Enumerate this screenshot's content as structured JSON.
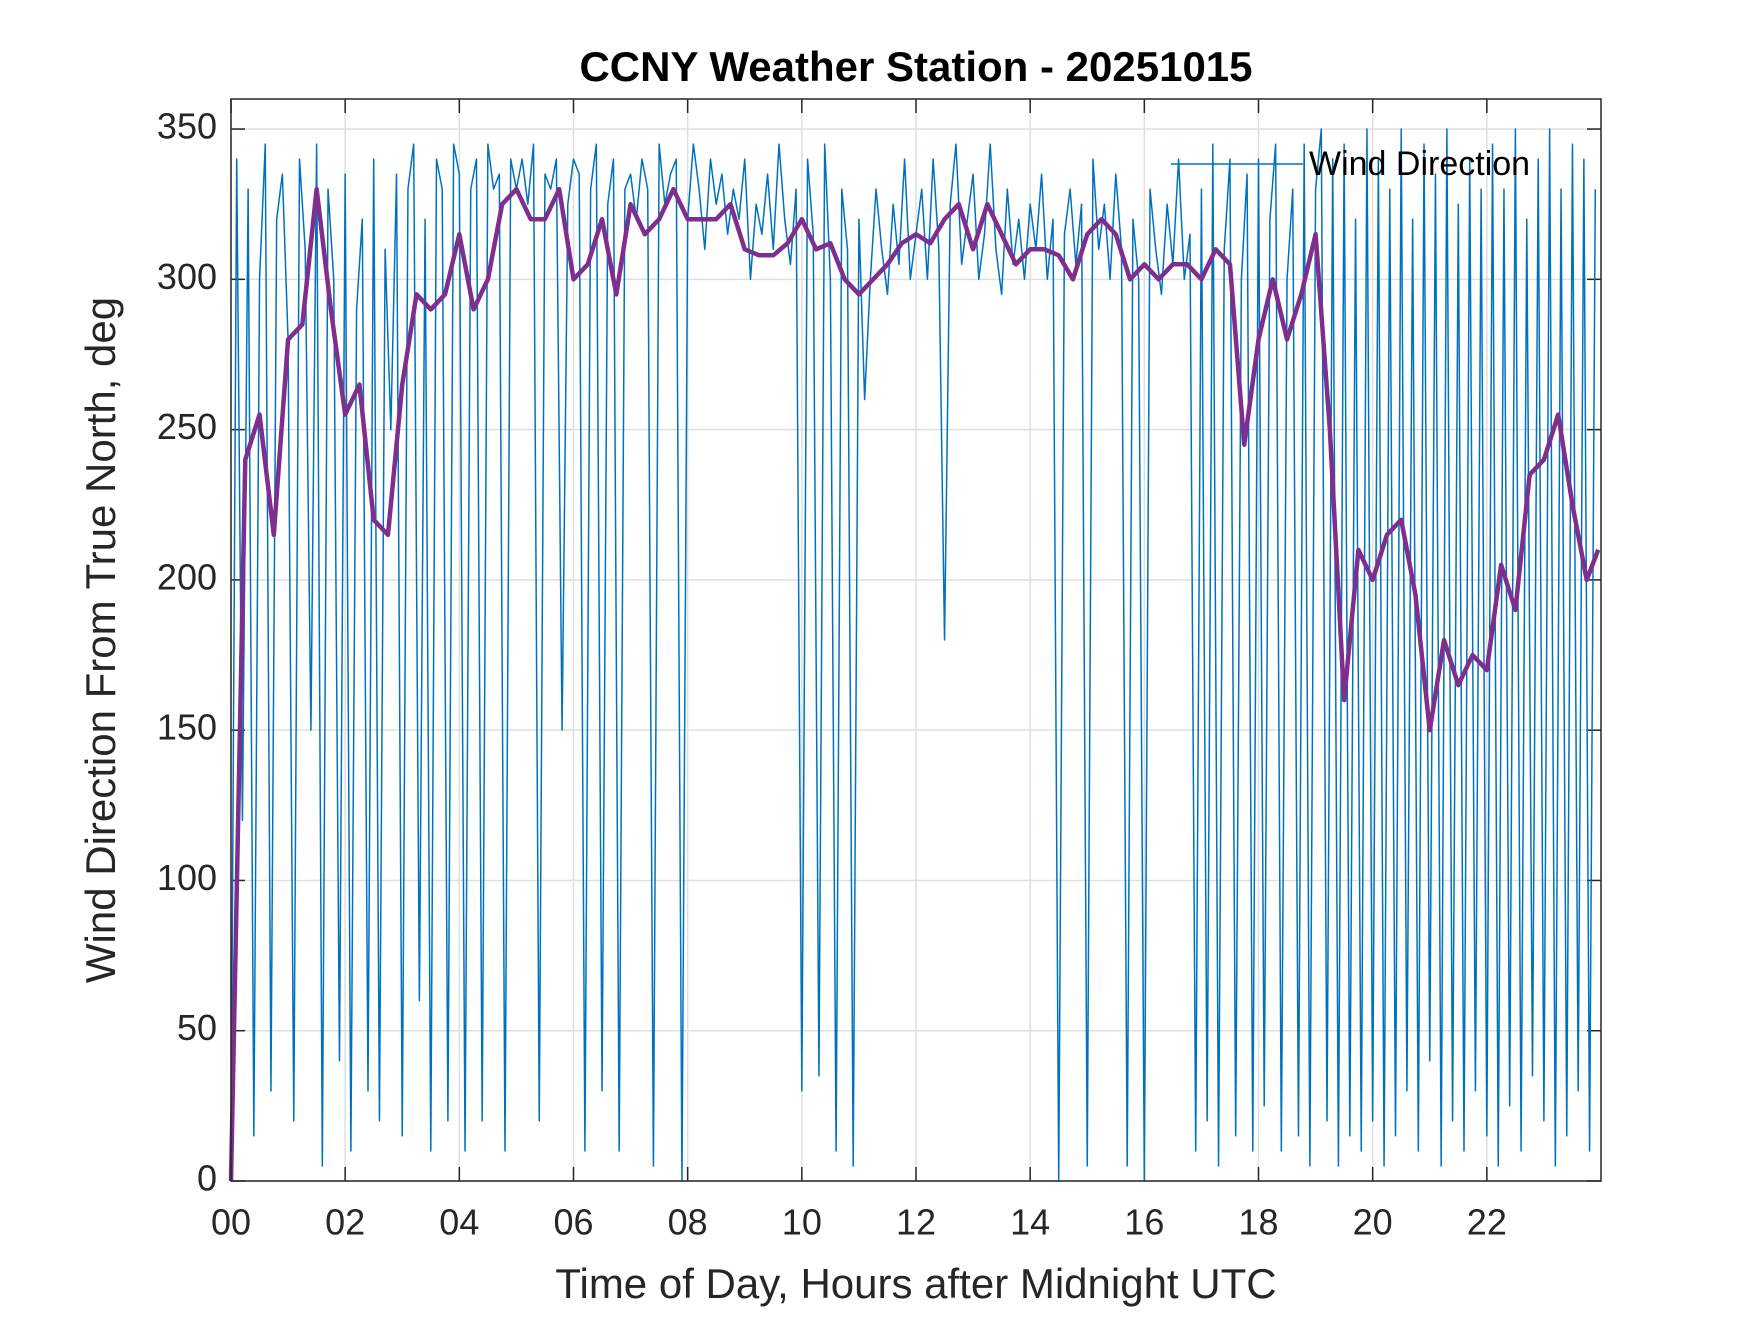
{
  "chart_data": {
    "type": "line",
    "title": "CCNY Weather Station - 20251015",
    "xlabel": "Time of Day, Hours after Midnight UTC",
    "ylabel": "Wind Direction From True North, deg",
    "xlim": [
      0,
      24
    ],
    "ylim": [
      0,
      360
    ],
    "xticks": [
      {
        "value": 0,
        "label": "00"
      },
      {
        "value": 2,
        "label": "02"
      },
      {
        "value": 4,
        "label": "04"
      },
      {
        "value": 6,
        "label": "06"
      },
      {
        "value": 8,
        "label": "08"
      },
      10,
      12,
      14,
      16,
      18,
      20,
      22
    ],
    "yticks": [
      0,
      50,
      100,
      150,
      200,
      250,
      300,
      350
    ],
    "grid": true,
    "legend": "northeast",
    "series": [
      {
        "name": "Wind Direction",
        "color": "#0072bd",
        "width": 1.5,
        "x": [
          0,
          0.1,
          0.2,
          0.3,
          0.4,
          0.5,
          0.6,
          0.7,
          0.8,
          0.9,
          1,
          1.1,
          1.2,
          1.3,
          1.4,
          1.5,
          1.6,
          1.7,
          1.8,
          1.9,
          2,
          2.1,
          2.2,
          2.3,
          2.4,
          2.5,
          2.6,
          2.7,
          2.8,
          2.9,
          3,
          3.1,
          3.2,
          3.3,
          3.4,
          3.5,
          3.6,
          3.7,
          3.8,
          3.9,
          4,
          4.1,
          4.2,
          4.3,
          4.4,
          4.5,
          4.6,
          4.7,
          4.8,
          4.9,
          5,
          5.1,
          5.2,
          5.3,
          5.4,
          5.5,
          5.6,
          5.7,
          5.8,
          5.9,
          6,
          6.1,
          6.2,
          6.3,
          6.4,
          6.5,
          6.6,
          6.7,
          6.8,
          6.9,
          7,
          7.1,
          7.2,
          7.3,
          7.4,
          7.5,
          7.6,
          7.7,
          7.8,
          7.9,
          8,
          8.1,
          8.2,
          8.3,
          8.4,
          8.5,
          8.6,
          8.7,
          8.8,
          8.9,
          9,
          9.1,
          9.2,
          9.3,
          9.4,
          9.5,
          9.6,
          9.7,
          9.8,
          9.9,
          10,
          10.1,
          10.2,
          10.3,
          10.4,
          10.5,
          10.6,
          10.7,
          10.8,
          10.9,
          11,
          11.1,
          11.2,
          11.3,
          11.4,
          11.5,
          11.6,
          11.7,
          11.8,
          11.9,
          12,
          12.1,
          12.2,
          12.3,
          12.4,
          12.5,
          12.6,
          12.7,
          12.8,
          12.9,
          13,
          13.1,
          13.2,
          13.3,
          13.4,
          13.5,
          13.6,
          13.7,
          13.8,
          13.9,
          14,
          14.1,
          14.2,
          14.3,
          14.4,
          14.5,
          14.6,
          14.7,
          14.8,
          14.9,
          15,
          15.1,
          15.2,
          15.3,
          15.4,
          15.5,
          15.6,
          15.7,
          15.8,
          15.9,
          16,
          16.1,
          16.2,
          16.3,
          16.4,
          16.5,
          16.6,
          16.7,
          16.8,
          16.9,
          17,
          17.1,
          17.2,
          17.3,
          17.4,
          17.5,
          17.6,
          17.7,
          17.8,
          17.9,
          18,
          18.1,
          18.2,
          18.3,
          18.4,
          18.5,
          18.6,
          18.7,
          18.8,
          18.9,
          19,
          19.1,
          19.2,
          19.3,
          19.4,
          19.5,
          19.6,
          19.7,
          19.8,
          19.9,
          20,
          20.1,
          20.2,
          20.3,
          20.4,
          20.5,
          20.6,
          20.7,
          20.8,
          20.9,
          21,
          21.1,
          21.2,
          21.3,
          21.4,
          21.5,
          21.6,
          21.7,
          21.8,
          21.9,
          22,
          22.1,
          22.2,
          22.3,
          22.4,
          22.5,
          22.6,
          22.7,
          22.8,
          22.9,
          23,
          23.1,
          23.2,
          23.3,
          23.4,
          23.5,
          23.6,
          23.7,
          23.8,
          23.9
        ],
        "values": [
          5,
          340,
          120,
          330,
          15,
          300,
          345,
          30,
          320,
          335,
          280,
          20,
          340,
          310,
          150,
          345,
          5,
          330,
          300,
          40,
          335,
          10,
          290,
          320,
          30,
          340,
          20,
          310,
          250,
          335,
          15,
          330,
          345,
          60,
          320,
          10,
          340,
          330,
          20,
          345,
          335,
          10,
          330,
          340,
          20,
          345,
          330,
          335,
          10,
          340,
          330,
          340,
          325,
          345,
          20,
          335,
          330,
          340,
          150,
          325,
          340,
          335,
          10,
          330,
          345,
          30,
          325,
          340,
          10,
          330,
          335,
          320,
          340,
          330,
          5,
          345,
          325,
          335,
          340,
          0,
          320,
          345,
          330,
          310,
          340,
          325,
          335,
          315,
          330,
          320,
          340,
          300,
          325,
          315,
          335,
          310,
          345,
          320,
          305,
          330,
          30,
          340,
          315,
          35,
          345,
          300,
          10,
          330,
          310,
          5,
          320,
          260,
          300,
          330,
          310,
          295,
          325,
          305,
          340,
          300,
          315,
          330,
          300,
          340,
          310,
          180,
          325,
          345,
          305,
          320,
          335,
          300,
          315,
          345,
          310,
          295,
          330,
          305,
          320,
          300,
          325,
          310,
          335,
          300,
          320,
          0,
          315,
          330,
          305,
          325,
          5,
          340,
          310,
          325,
          300,
          335,
          310,
          5,
          320,
          300,
          0,
          330,
          310,
          295,
          325,
          305,
          340,
          300,
          315,
          10,
          330,
          20,
          345,
          5,
          310,
          340,
          15,
          300,
          335,
          10,
          340,
          25,
          320,
          345,
          10,
          300,
          330,
          15,
          345,
          5,
          330,
          350,
          20,
          340,
          5,
          345,
          15,
          320,
          10,
          350,
          20,
          340,
          5,
          330,
          15,
          350,
          30,
          320,
          10,
          345,
          40,
          335,
          5,
          350,
          20,
          325,
          10,
          340,
          30,
          330,
          15,
          345,
          5,
          330,
          25,
          350,
          10,
          320,
          35,
          340,
          20,
          350,
          5,
          330,
          15,
          345,
          30,
          340,
          10,
          330
        ]
      },
      {
        "color": "#7e2f8e",
        "width": 4.5,
        "x": [
          0,
          0.25,
          0.5,
          0.75,
          1,
          1.25,
          1.5,
          1.75,
          2,
          2.25,
          2.5,
          2.75,
          3,
          3.25,
          3.5,
          3.75,
          4,
          4.25,
          4.5,
          4.75,
          5,
          5.25,
          5.5,
          5.75,
          6,
          6.25,
          6.5,
          6.75,
          7,
          7.25,
          7.5,
          7.75,
          8,
          8.25,
          8.5,
          8.75,
          9,
          9.25,
          9.5,
          9.75,
          10,
          10.25,
          10.5,
          10.75,
          11,
          11.25,
          11.5,
          11.75,
          12,
          12.25,
          12.5,
          12.75,
          13,
          13.25,
          13.5,
          13.75,
          14,
          14.25,
          14.5,
          14.75,
          15,
          15.25,
          15.5,
          15.75,
          16,
          16.25,
          16.5,
          16.75,
          17,
          17.25,
          17.5,
          17.75,
          18,
          18.25,
          18.5,
          18.75,
          19,
          19.25,
          19.5,
          19.75,
          20,
          20.25,
          20.5,
          20.75,
          21,
          21.25,
          21.5,
          21.75,
          22,
          22.25,
          22.5,
          22.75,
          23,
          23.25,
          23.5,
          23.75,
          23.95
        ],
        "values": [
          0,
          240,
          255,
          215,
          280,
          285,
          330,
          290,
          255,
          265,
          220,
          215,
          265,
          295,
          290,
          295,
          315,
          290,
          300,
          325,
          330,
          320,
          320,
          330,
          300,
          305,
          320,
          295,
          325,
          315,
          320,
          330,
          320,
          320,
          320,
          325,
          310,
          308,
          308,
          312,
          320,
          310,
          312,
          300,
          295,
          300,
          305,
          312,
          315,
          312,
          320,
          325,
          310,
          325,
          315,
          305,
          310,
          310,
          308,
          300,
          315,
          320,
          315,
          300,
          305,
          300,
          305,
          305,
          300,
          310,
          305,
          245,
          280,
          300,
          280,
          295,
          315,
          250,
          160,
          210,
          200,
          215,
          220,
          195,
          150,
          180,
          165,
          175,
          170,
          205,
          190,
          235,
          240,
          255,
          225,
          200,
          210
        ]
      }
    ]
  }
}
